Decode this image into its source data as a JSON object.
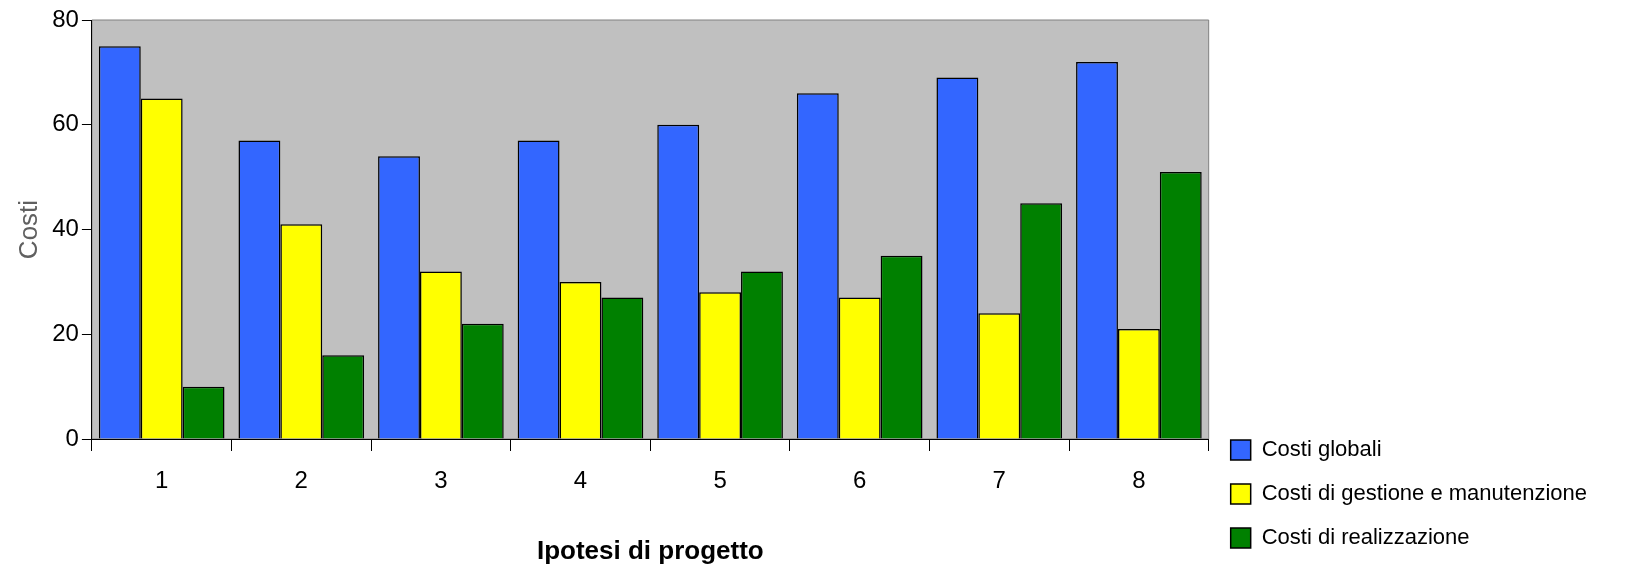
{
  "chart_data": {
    "type": "bar",
    "xlabel": "Ipotesi di progetto",
    "ylabel": "Costi",
    "categories": [
      "1",
      "2",
      "3",
      "4",
      "5",
      "6",
      "7",
      "8"
    ],
    "series": [
      {
        "name": "Costi globali",
        "color": "#3366ff",
        "values": [
          75,
          57,
          54,
          57,
          60,
          66,
          69,
          72
        ]
      },
      {
        "name": "Costi di gestione e manutenzione",
        "color": "#ffff00",
        "values": [
          65,
          41,
          32,
          30,
          28,
          27,
          24,
          21
        ]
      },
      {
        "name": "Costi di realizzazione",
        "color": "#008000",
        "values": [
          10,
          16,
          22,
          27,
          32,
          35,
          45,
          51
        ]
      }
    ],
    "ylim": [
      0,
      80
    ],
    "yticks": [
      0,
      20,
      40,
      60,
      80
    ],
    "legend": "right"
  }
}
